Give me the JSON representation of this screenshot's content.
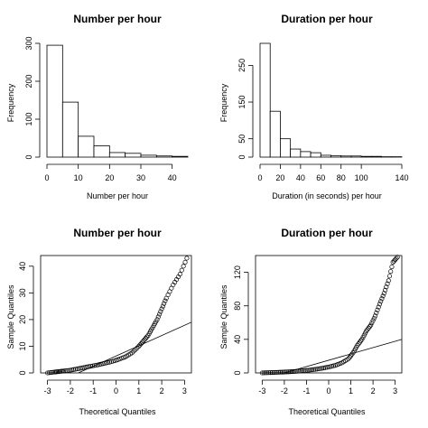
{
  "chart_data": [
    {
      "type": "bar",
      "subtype": "histogram",
      "title": "Number per hour",
      "xlabel": "Number per hour",
      "ylabel": "Frequency",
      "bin_edges": [
        0,
        5,
        10,
        15,
        20,
        25,
        30,
        35,
        40,
        45
      ],
      "values": [
        295,
        145,
        55,
        30,
        12,
        10,
        5,
        3,
        2
      ],
      "xlim": [
        0,
        45
      ],
      "ylim": [
        0,
        300
      ],
      "xticks": [
        0,
        10,
        20,
        30,
        40
      ],
      "yticks": [
        0,
        100,
        200,
        300
      ]
    },
    {
      "type": "bar",
      "subtype": "histogram",
      "title": "Duration per hour",
      "xlabel": "Duration (in seconds) per hour",
      "ylabel": "Frequency",
      "bin_edges": [
        0,
        10,
        20,
        30,
        40,
        50,
        60,
        70,
        80,
        90,
        100,
        110,
        120,
        130,
        140
      ],
      "values": [
        310,
        125,
        50,
        22,
        15,
        12,
        5,
        4,
        3,
        3,
        2,
        2,
        1,
        1
      ],
      "xlim": [
        0,
        140
      ],
      "ylim": [
        0,
        310
      ],
      "xticks": [
        0,
        20,
        40,
        60,
        80,
        100,
        140
      ],
      "yticks": [
        0,
        50,
        150,
        250
      ]
    },
    {
      "type": "scatter",
      "subtype": "qq",
      "title": "Number per hour",
      "xlabel": "Theoretical Quantiles",
      "ylabel": "Sample Quantiles",
      "xlim": [
        -3.3,
        3.3
      ],
      "ylim": [
        0,
        44
      ],
      "xticks": [
        -3,
        -2,
        -1,
        0,
        1,
        2,
        3
      ],
      "yticks": [
        0,
        10,
        20,
        30,
        40
      ],
      "refline": [
        [
          -1.65,
          0
        ],
        [
          3.3,
          19
        ]
      ],
      "sample_quantiles": [
        [
          -3.0,
          0.0
        ],
        [
          -2.7,
          0.3
        ],
        [
          -2.5,
          0.5
        ],
        [
          -2.3,
          0.7
        ],
        [
          -2.0,
          1.0
        ],
        [
          -1.7,
          1.5
        ],
        [
          -1.4,
          2.0
        ],
        [
          -1.1,
          2.5
        ],
        [
          -0.8,
          3.0
        ],
        [
          -0.5,
          3.6
        ],
        [
          -0.2,
          4.2
        ],
        [
          0.1,
          5.0
        ],
        [
          0.4,
          6.0
        ],
        [
          0.7,
          7.5
        ],
        [
          1.0,
          10.0
        ],
        [
          1.2,
          12.0
        ],
        [
          1.4,
          14.0
        ],
        [
          1.6,
          17.0
        ],
        [
          1.8,
          20.0
        ],
        [
          2.0,
          24.0
        ],
        [
          2.2,
          28.0
        ],
        [
          2.5,
          33.0
        ],
        [
          2.8,
          37.0
        ],
        [
          3.1,
          43.0
        ]
      ]
    },
    {
      "type": "scatter",
      "subtype": "qq",
      "title": "Duration per hour",
      "xlabel": "Theoretical Quantiles",
      "ylabel": "Sample Quantiles",
      "xlim": [
        -3.3,
        3.3
      ],
      "ylim": [
        0,
        140
      ],
      "xticks": [
        -3,
        -2,
        -1,
        0,
        1,
        2,
        3
      ],
      "yticks": [
        0,
        40,
        80,
        120
      ],
      "refline": [
        [
          -2.0,
          0
        ],
        [
          3.3,
          40
        ]
      ],
      "sample_quantiles": [
        [
          -3.0,
          0.0
        ],
        [
          -2.7,
          0.3
        ],
        [
          -2.4,
          0.6
        ],
        [
          -2.1,
          0.9
        ],
        [
          -1.8,
          1.3
        ],
        [
          -1.5,
          1.8
        ],
        [
          -1.2,
          2.5
        ],
        [
          -0.9,
          3.2
        ],
        [
          -0.6,
          4.2
        ],
        [
          -0.3,
          5.5
        ],
        [
          0.0,
          7.0
        ],
        [
          0.3,
          9.0
        ],
        [
          0.6,
          12.0
        ],
        [
          0.9,
          17.0
        ],
        [
          1.1,
          24.0
        ],
        [
          1.3,
          33.0
        ],
        [
          1.5,
          40.0
        ],
        [
          1.7,
          50.0
        ],
        [
          1.9,
          57.0
        ],
        [
          2.1,
          68.0
        ],
        [
          2.3,
          82.0
        ],
        [
          2.5,
          95.0
        ],
        [
          2.7,
          110.0
        ],
        [
          2.9,
          132.0
        ],
        [
          3.1,
          138.0
        ]
      ]
    }
  ]
}
